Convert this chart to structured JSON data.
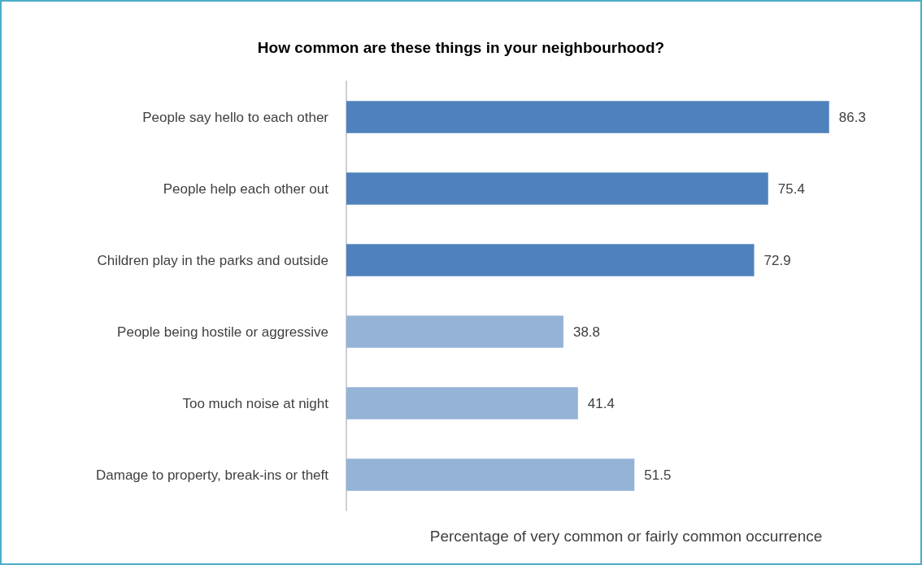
{
  "chart_data": {
    "type": "bar",
    "orientation": "horizontal",
    "title": "How common are these things in your neighbourhood?",
    "xlabel": "Percentage of very common or fairly common occurrence",
    "categories": [
      "People say hello to each other",
      "People help each other out",
      "Children play in the parks and outside",
      "People being hostile or aggressive",
      "Too much noise at night",
      "Damage to property, break-ins or theft"
    ],
    "values": [
      86.3,
      75.4,
      72.9,
      38.8,
      41.4,
      51.5
    ],
    "colors": [
      "#4f81bd",
      "#4f81bd",
      "#4f81bd",
      "#95b3d7",
      "#95b3d7",
      "#95b3d7"
    ],
    "data_labels": true
  }
}
